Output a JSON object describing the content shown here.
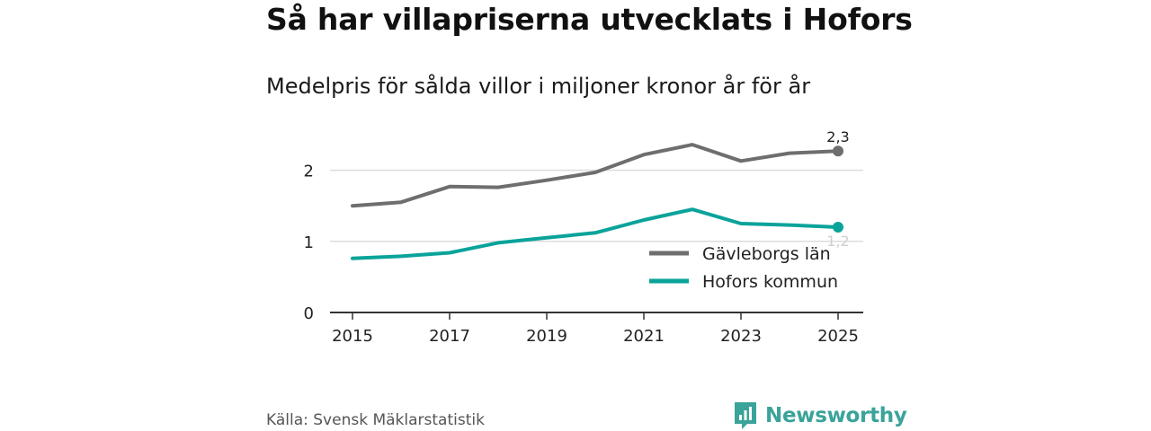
{
  "header": {
    "title": "Så har villapriserna utvecklats i Hofors",
    "subtitle": "Medelpris för sålda villor i miljoner kronor år för år"
  },
  "footer": {
    "source": "Källa: Svensk Mäklarstatistik",
    "brand": "Newsworthy"
  },
  "colors": {
    "gavleborg": "#6e6e6e",
    "hofors": "#0aa39a",
    "grid": "#dcdcdc",
    "axis": "#333333",
    "brand": "#3aa39a"
  },
  "chart_data": {
    "type": "line",
    "title": "Så har villapriserna utvecklats i Hofors",
    "subtitle": "Medelpris för sålda villor i miljoner kronor år för år",
    "xlabel": "",
    "ylabel": "",
    "x": [
      2015,
      2016,
      2017,
      2018,
      2019,
      2020,
      2021,
      2022,
      2023,
      2024,
      2025
    ],
    "xticks": [
      2015,
      2017,
      2019,
      2021,
      2023,
      2025
    ],
    "xtick_labels": [
      "2015",
      "2017",
      "2019",
      "2021",
      "2023",
      "2025"
    ],
    "yticks": [
      0,
      1,
      2
    ],
    "ytick_labels": [
      "0",
      "1",
      "2"
    ],
    "xlim": [
      2015,
      2025
    ],
    "ylim": [
      0,
      2.5
    ],
    "grid": "horizontal",
    "legend_position": "bottom-right",
    "series": [
      {
        "name": "Gävleborgs län",
        "key": "gavleborg",
        "values": [
          1.5,
          1.55,
          1.77,
          1.76,
          1.86,
          1.97,
          2.22,
          2.36,
          2.13,
          2.24,
          2.27
        ],
        "end_label": "2,3"
      },
      {
        "name": "Hofors kommun",
        "key": "hofors",
        "values": [
          0.76,
          0.79,
          0.84,
          0.98,
          1.05,
          1.12,
          1.3,
          1.45,
          1.25,
          1.23,
          1.2
        ],
        "end_label": "1,2"
      }
    ]
  }
}
